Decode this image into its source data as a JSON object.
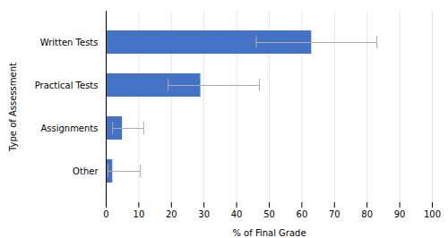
{
  "chart_data": {
    "type": "bar",
    "orientation": "horizontal",
    "categories": [
      "Other",
      "Assignments",
      "Practical Tests",
      "Written Tests"
    ],
    "values": [
      2,
      5,
      29,
      63
    ],
    "errors": {
      "minus": [
        1.5,
        3.0,
        10,
        17
      ],
      "plus": [
        8.5,
        6.5,
        18,
        20
      ],
      "color": "#AAAAAA"
    },
    "color": "#4472C4",
    "xlabel": "% of Final Grade",
    "ylabel": "Type of Assessment",
    "xlim": [
      0,
      100
    ],
    "xticks": [
      0,
      10,
      20,
      30,
      40,
      50,
      60,
      70,
      80,
      90,
      100
    ],
    "grid": true
  }
}
